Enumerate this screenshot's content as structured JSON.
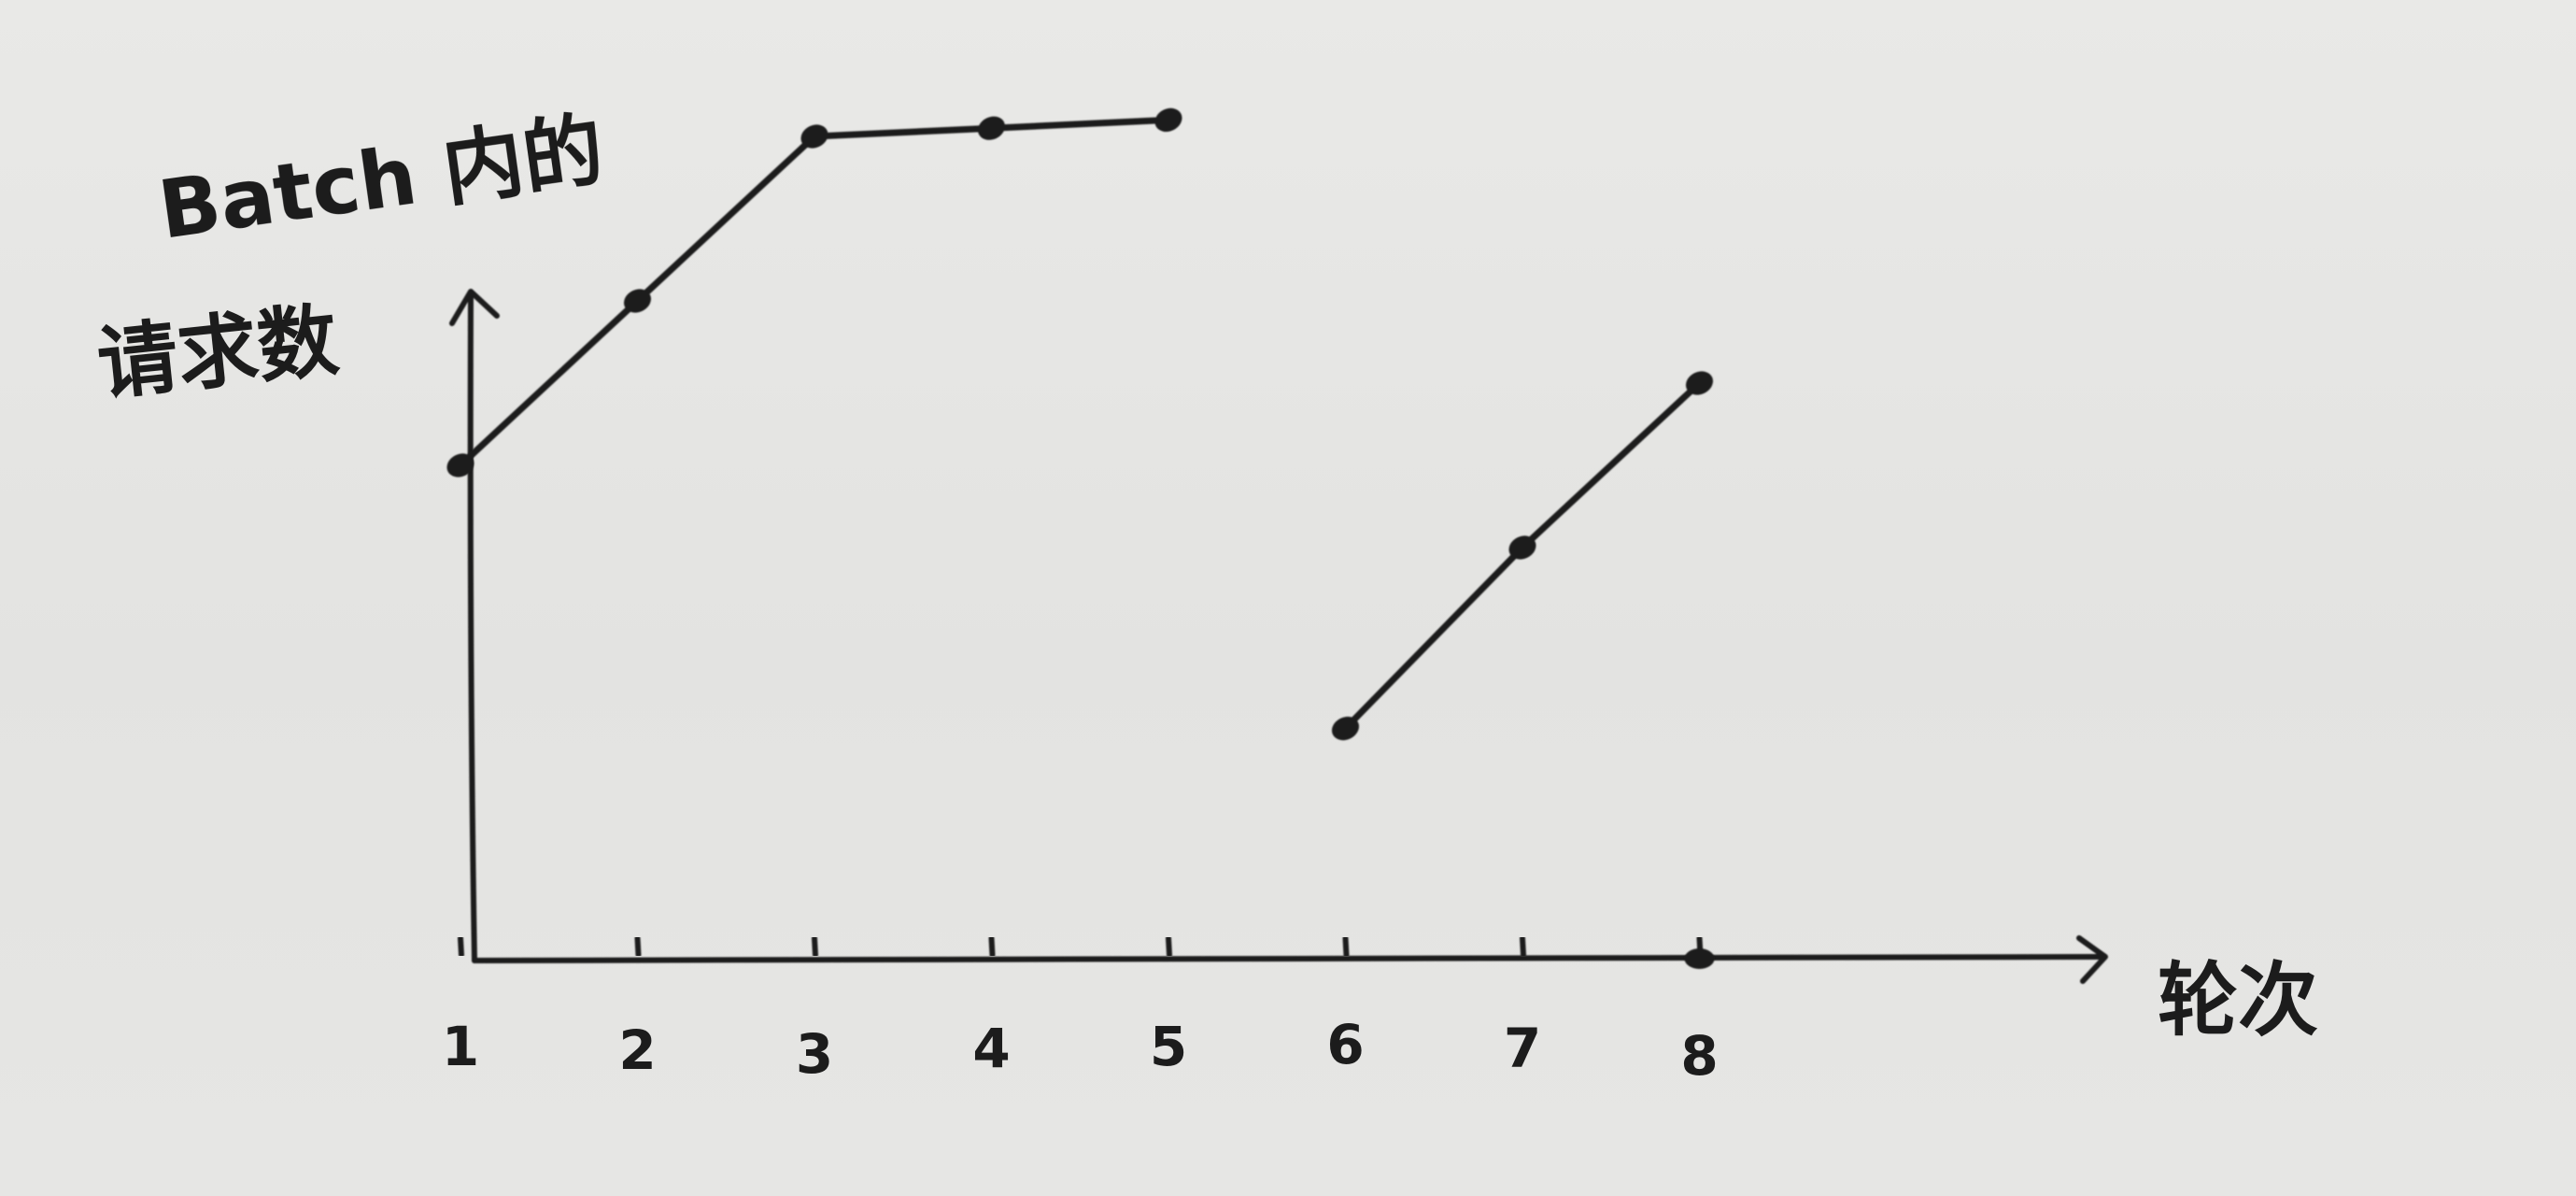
{
  "chart_data": {
    "type": "line",
    "xlabel": "轮次",
    "ylabel_line1": "Batch 内的",
    "ylabel_line2": "请求数",
    "categories": [
      "1",
      "2",
      "3",
      "4",
      "5",
      "6",
      "7",
      "8"
    ],
    "series": [
      {
        "x": [
          1,
          2,
          3,
          4,
          5
        ],
        "values": [
          3,
          4,
          5,
          5.05,
          5.1
        ]
      },
      {
        "x": [
          6,
          7,
          8
        ],
        "values": [
          1.4,
          2.5,
          3.5
        ]
      }
    ],
    "markers": [
      {
        "x": 8,
        "value": 0
      }
    ],
    "grid": false,
    "legend": "none"
  }
}
